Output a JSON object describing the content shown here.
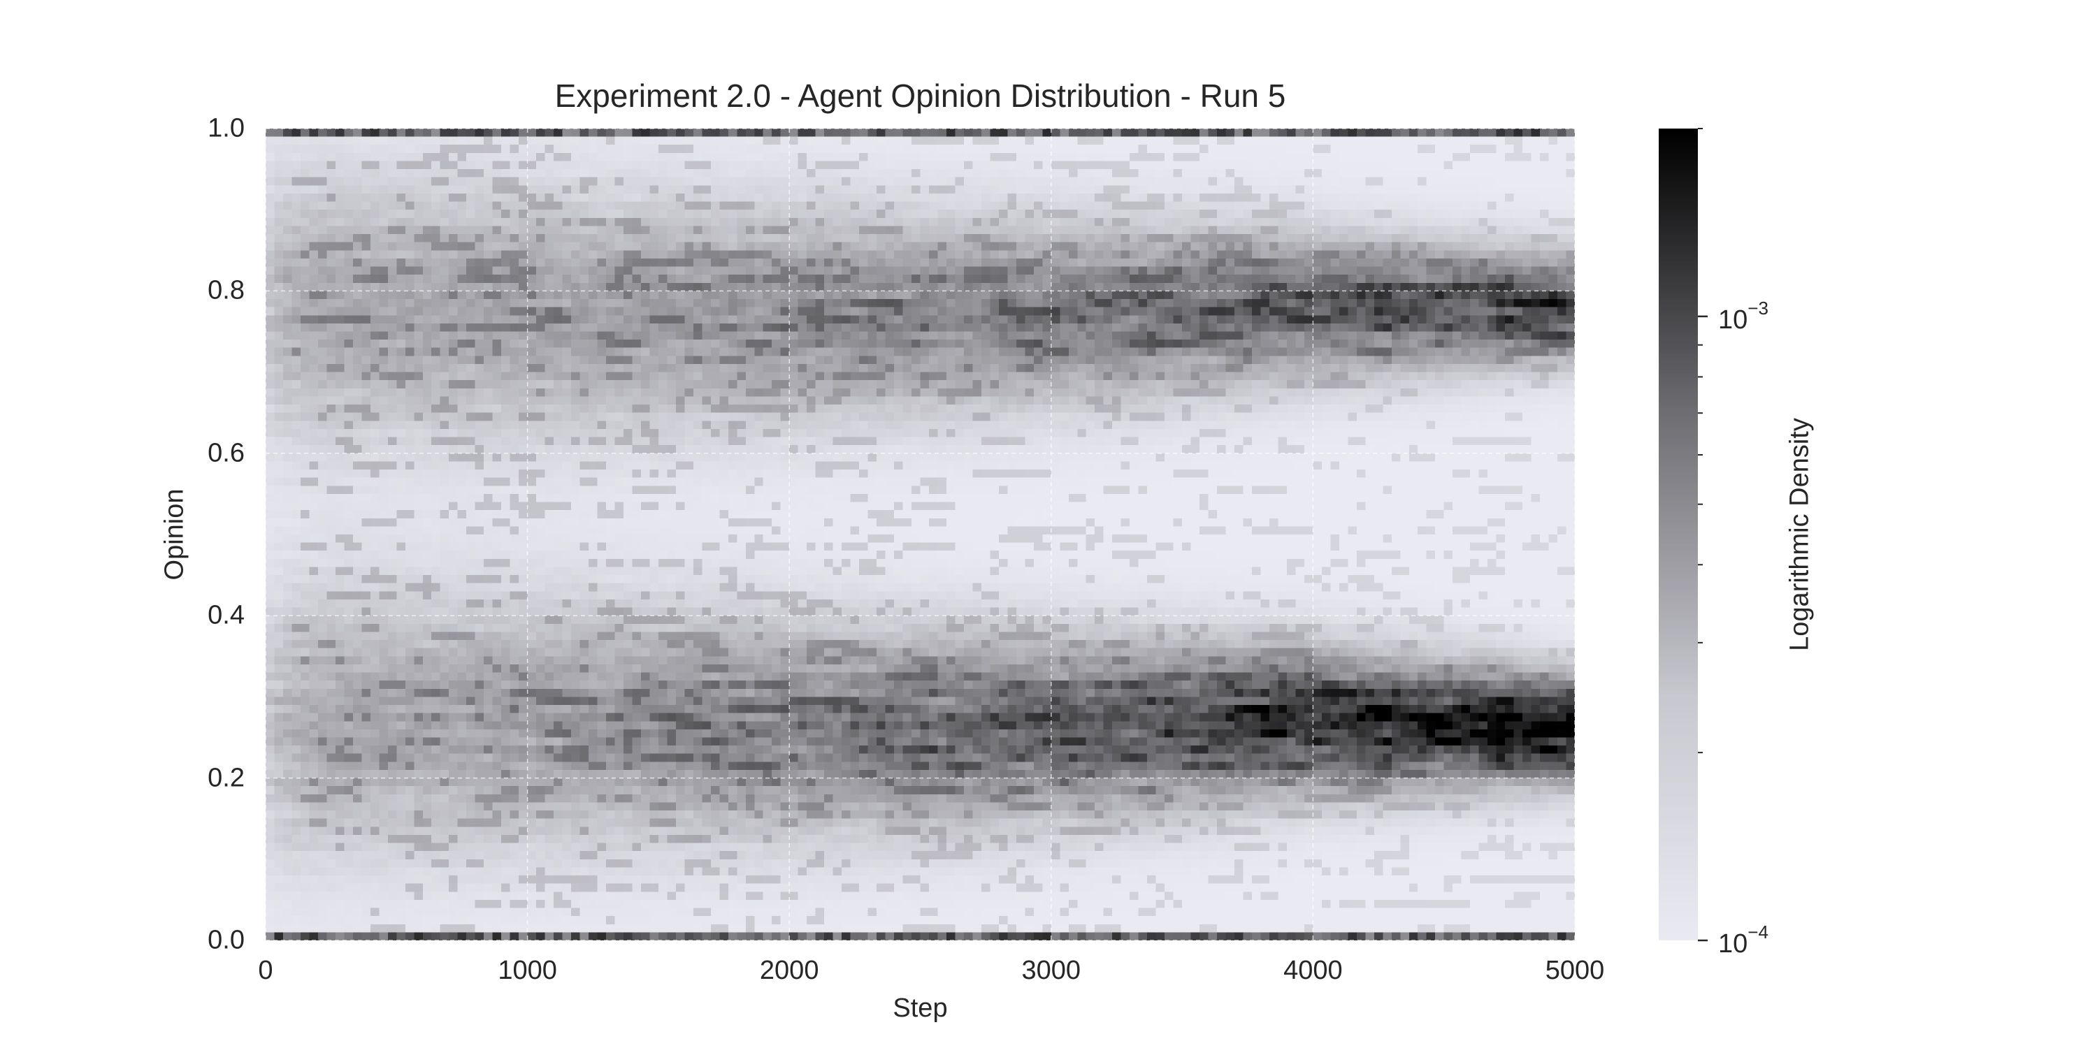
{
  "chart_data": {
    "type": "heatmap",
    "title": "Experiment 2.0 - Agent Opinion Distribution - Run 5",
    "xlabel": "Step",
    "ylabel": "Opinion",
    "xlim": [
      0,
      5000
    ],
    "ylim": [
      0.0,
      1.0
    ],
    "xticks": [
      "0",
      "1000",
      "2000",
      "3000",
      "4000",
      "5000"
    ],
    "yticks": [
      "0.0",
      "0.2",
      "0.4",
      "0.6",
      "0.8",
      "1.0"
    ],
    "grid": true,
    "colormap": "white-to-black (greys)",
    "colorbar": {
      "label": "Logarithmic Density",
      "scale": "log",
      "range": [
        0.0001,
        0.002
      ],
      "ticks": [
        {
          "base": "10",
          "exp": "−4",
          "value": 0.0001
        },
        {
          "base": "10",
          "exp": "−3",
          "value": 0.001
        }
      ]
    },
    "clusters": [
      {
        "name": "lower cluster",
        "step": [
          0,
          1000,
          2000,
          3000,
          4000,
          5000
        ],
        "opinion": [
          0.27,
          0.27,
          0.26,
          0.26,
          0.27,
          0.26
        ],
        "peak_density_step_5000": 0.002
      },
      {
        "name": "upper cluster",
        "step": [
          0,
          1000,
          2000,
          3000,
          4000,
          5000
        ],
        "opinion": [
          0.78,
          0.77,
          0.77,
          0.77,
          0.78,
          0.78
        ],
        "peak_density_step_5000": 0.0012
      }
    ],
    "edge_bands": [
      {
        "opinion": 0.0,
        "description": "dark band along bottom edge"
      },
      {
        "opinion": 1.0,
        "description": "dark band along top edge"
      }
    ]
  },
  "colors": {
    "background": "#eaeaf2",
    "grid": "#ffffff",
    "high": "#000000",
    "text": "#262626"
  }
}
